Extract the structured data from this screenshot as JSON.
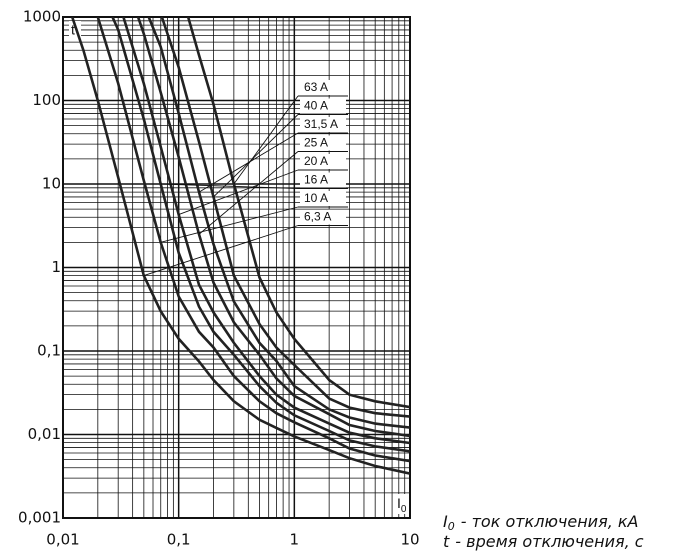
{
  "chart_data": {
    "type": "line",
    "ylabel": "t",
    "xlabel": {
      "symbol": "I",
      "subscript": "0"
    },
    "notes": [
      {
        "symbol": "I",
        "subscript": "0",
        "text": "- ток отключения, кА"
      },
      {
        "symbol": "t",
        "text": "- время отключения, с"
      }
    ],
    "xscale": "log",
    "yscale": "log",
    "grid": true,
    "minor_grid": true,
    "xlim": [
      0.01,
      10
    ],
    "ylim": [
      0.001,
      1000
    ],
    "xticks": [
      {
        "value": 0.01,
        "label": "0,01"
      },
      {
        "value": 0.1,
        "label": "0,1"
      },
      1,
      10
    ],
    "yticks": [
      {
        "value": 0.001,
        "label": "0,001"
      },
      {
        "value": 0.01,
        "label": "0,01"
      },
      {
        "value": 0.1,
        "label": "0,1"
      },
      1,
      10,
      100,
      1000
    ],
    "x": [
      0.012,
      0.015,
      0.02,
      0.03,
      0.05,
      0.07,
      0.1,
      0.15,
      0.2,
      0.3,
      0.5,
      0.7,
      1,
      2,
      3,
      5,
      10
    ],
    "series": [
      {
        "name": "63 A",
        "color": "#222222",
        "values": [
          null,
          null,
          null,
          null,
          null,
          null,
          2500,
          350,
          90,
          10,
          0.76,
          0.29,
          0.14,
          0.045,
          0.03,
          0.025,
          0.0213
        ]
      },
      {
        "name": "40 A",
        "color": "#222222",
        "values": [
          null,
          null,
          null,
          null,
          null,
          1100,
          250,
          32,
          7,
          0.8,
          0.21,
          0.11,
          0.068,
          0.027,
          0.021,
          0.018,
          0.0164
        ]
      },
      {
        "name": "31,5 A",
        "color": "#222222",
        "values": [
          null,
          null,
          null,
          null,
          1400,
          440,
          70,
          8,
          1.9,
          0.39,
          0.125,
          0.076,
          0.038,
          0.02,
          0.016,
          0.0135,
          0.0121
        ]
      },
      {
        "name": "25 A",
        "color": "#222222",
        "values": [
          null,
          null,
          null,
          5000,
          630,
          125,
          21,
          2.5,
          0.66,
          0.22,
          0.09,
          0.047,
          0.029,
          0.0175,
          0.013,
          0.011,
          0.0096
        ]
      },
      {
        "name": "20 A",
        "color": "#222222",
        "values": [
          null,
          null,
          null,
          1600,
          160,
          28,
          4.3,
          0.62,
          0.29,
          0.125,
          0.05,
          0.03,
          0.021,
          0.0135,
          0.0105,
          0.009,
          0.0079
        ]
      },
      {
        "name": "16 A",
        "color": "#222222",
        "values": [
          null,
          null,
          2500,
          700,
          60,
          10,
          1.5,
          0.34,
          0.17,
          0.09,
          0.038,
          0.024,
          0.017,
          0.011,
          0.0085,
          0.0072,
          0.0063
        ]
      },
      {
        "name": "10 A",
        "color": "#222222",
        "values": [
          null,
          2000,
          1000,
          160,
          11,
          2,
          0.45,
          0.17,
          0.11,
          0.05,
          0.025,
          0.018,
          0.014,
          0.009,
          0.0068,
          0.0056,
          0.0048
        ]
      },
      {
        "name": "6,3 A",
        "color": "#222222",
        "values": [
          1000,
          400,
          100,
          12,
          0.8,
          0.3,
          0.14,
          0.075,
          0.045,
          0.025,
          0.015,
          0.012,
          0.0095,
          0.0065,
          0.0052,
          0.0042,
          0.0034
        ]
      }
    ]
  }
}
